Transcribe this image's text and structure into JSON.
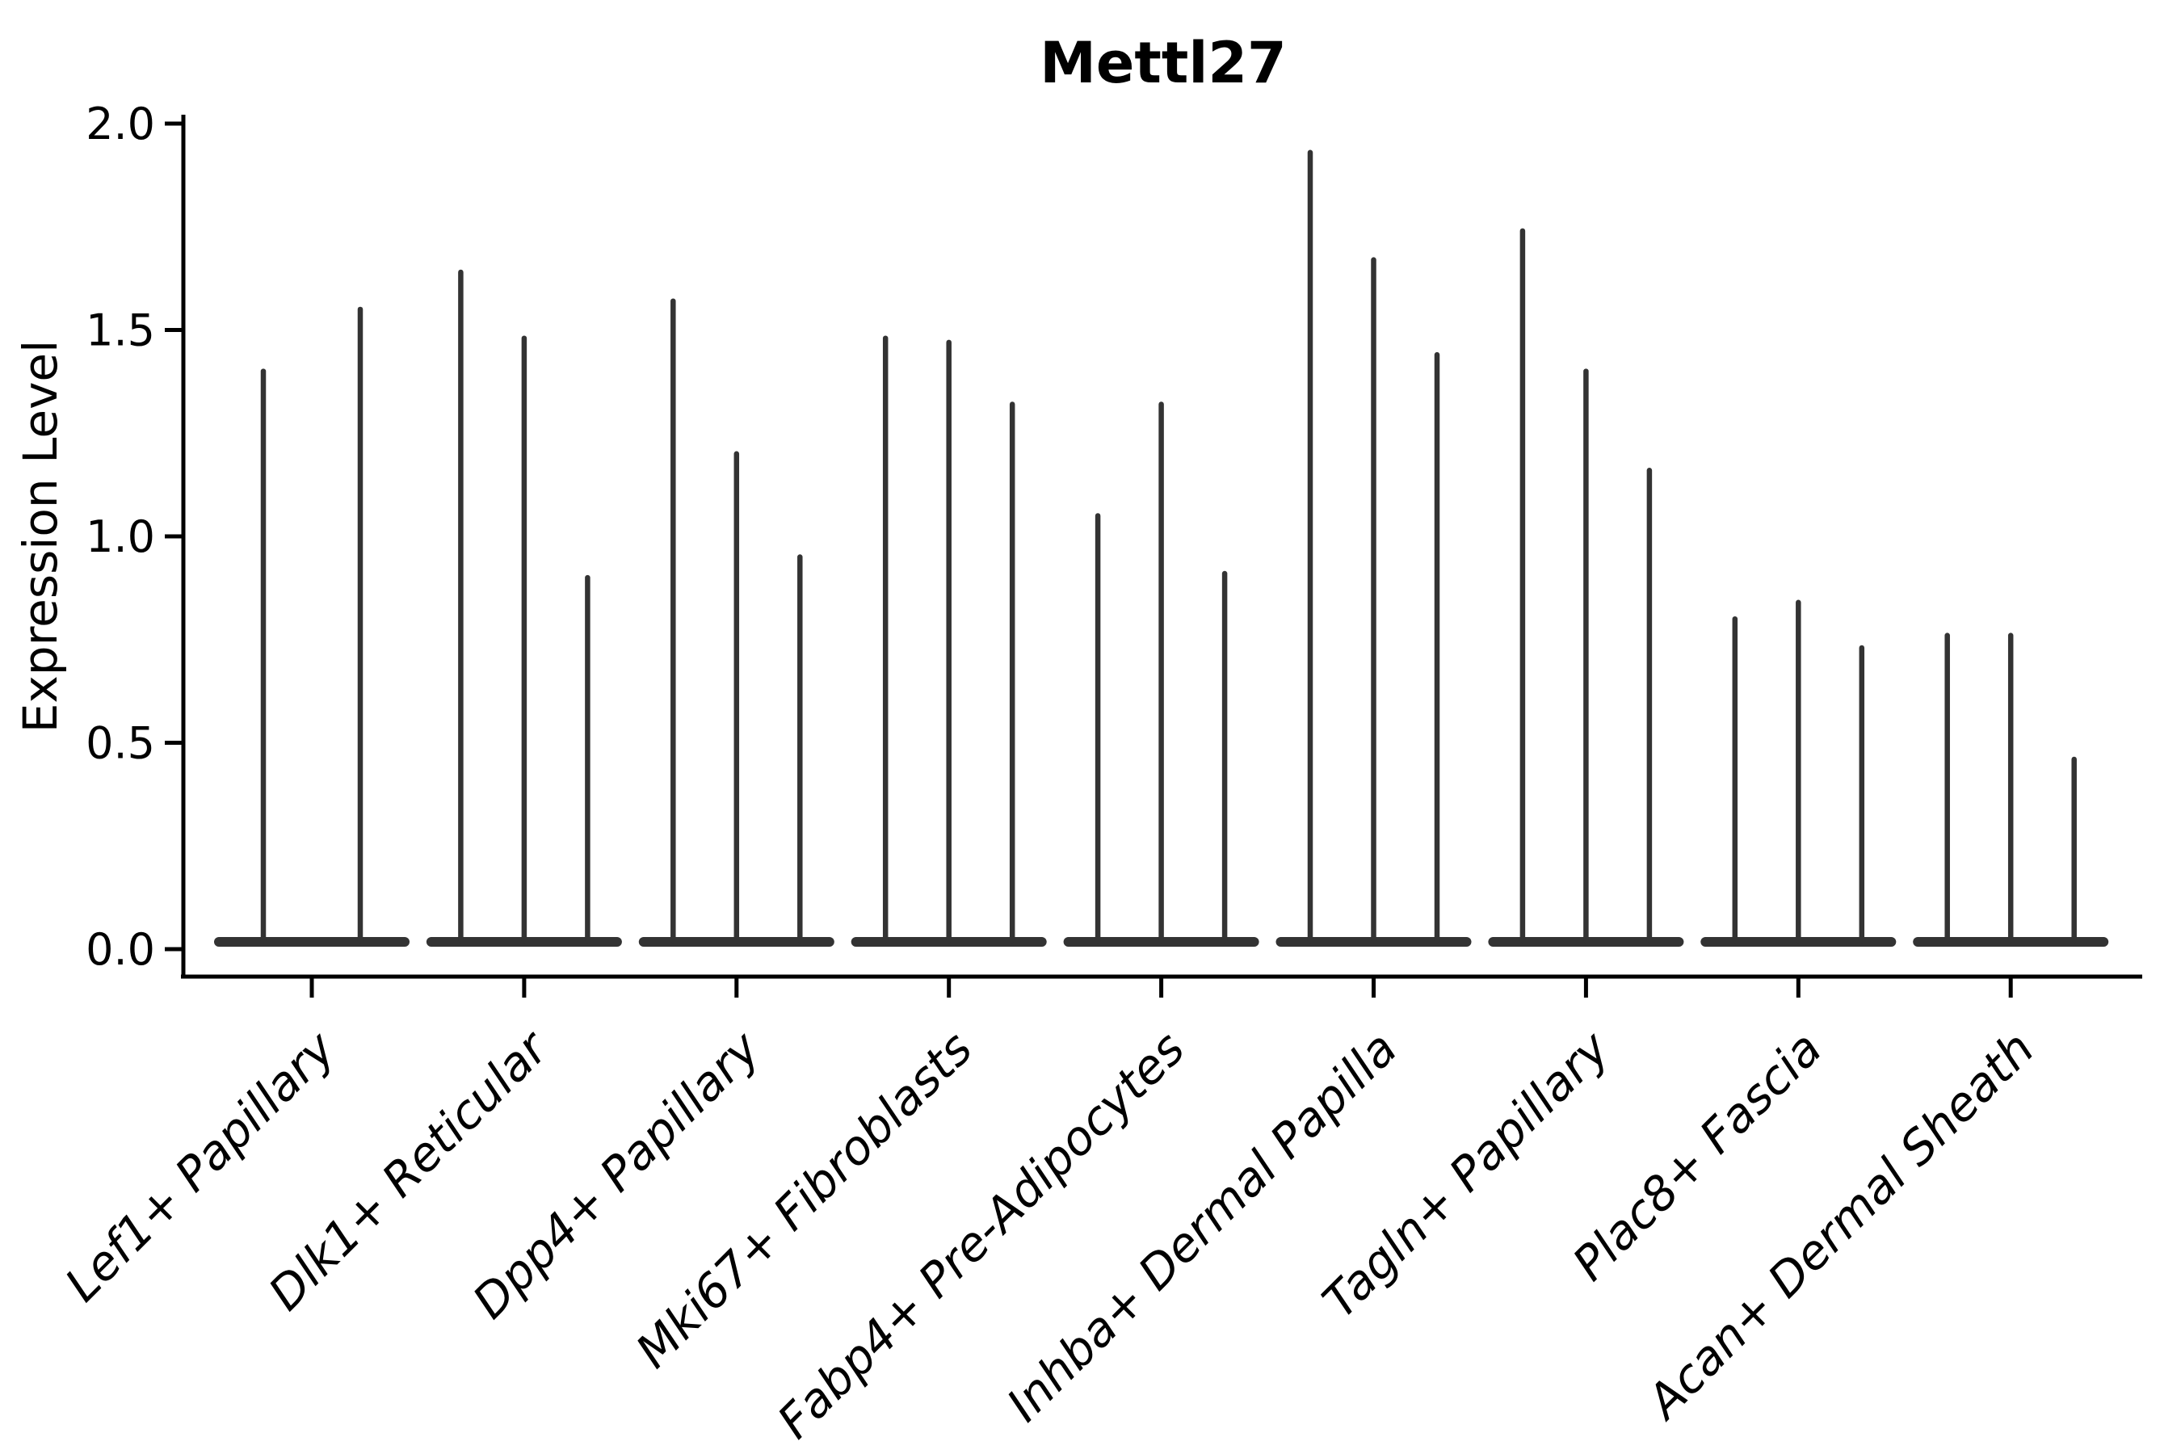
{
  "figure": {
    "background": "#ffffff"
  },
  "chart_data": {
    "type": "violin",
    "title": "Mettl27",
    "ylabel": "Expression Level",
    "xlabel": "",
    "ylim": [
      0.0,
      2.0
    ],
    "yticks": [
      0.0,
      0.5,
      1.0,
      1.5,
      2.0
    ],
    "ytick_labels": [
      "0.0",
      "0.5",
      "1.0",
      "1.5",
      "2.0"
    ],
    "grid": false,
    "legend": false,
    "ink_color": "#333333",
    "axis_color": "#000000",
    "x_label_rotation_deg": 45,
    "categories": [
      {
        "label": "Lef1+ Papillary",
        "violin_max_values": [
          1.4,
          1.55
        ]
      },
      {
        "label": "Dlk1+ Reticular",
        "violin_max_values": [
          1.64,
          1.48,
          0.9
        ]
      },
      {
        "label": "Dpp4+ Papillary",
        "violin_max_values": [
          1.57,
          1.2,
          0.95
        ]
      },
      {
        "label": "Mki67+ Fibroblasts",
        "violin_max_values": [
          1.48,
          1.47,
          1.32
        ]
      },
      {
        "label": "Fabp4+ Pre-Adipocytes",
        "violin_max_values": [
          1.05,
          1.32,
          0.91
        ]
      },
      {
        "label": "Inhba+ Dermal Papilla",
        "violin_max_values": [
          1.93,
          1.67,
          1.44
        ]
      },
      {
        "label": "Tagln+ Papillary",
        "violin_max_values": [
          1.74,
          1.4,
          1.16
        ]
      },
      {
        "label": "Plac8+ Fascia",
        "violin_max_values": [
          0.8,
          0.84,
          0.73
        ]
      },
      {
        "label": "Acan+ Dermal Sheath",
        "violin_max_values": [
          0.76,
          0.76,
          0.46
        ]
      }
    ]
  }
}
